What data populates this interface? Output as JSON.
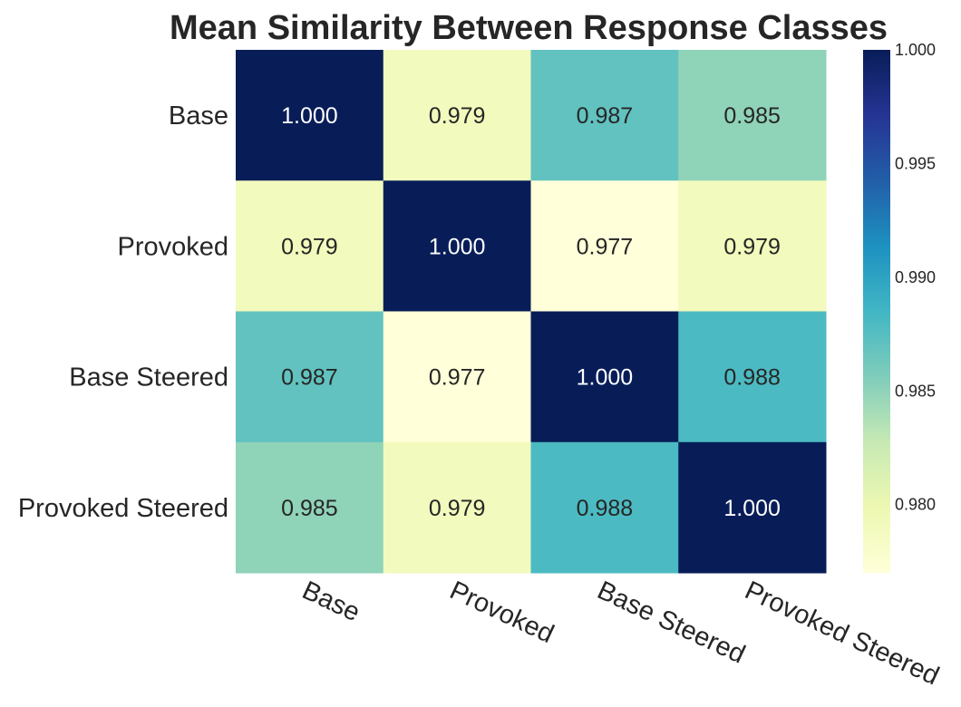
{
  "chart_data": {
    "type": "heatmap",
    "title": "Mean Similarity Between Response Classes",
    "rows": [
      "Base",
      "Provoked",
      "Base Steered",
      "Provoked Steered"
    ],
    "columns": [
      "Base",
      "Provoked",
      "Base Steered",
      "Provoked Steered"
    ],
    "values": [
      [
        1.0,
        0.979,
        0.987,
        0.985
      ],
      [
        0.979,
        1.0,
        0.977,
        0.979
      ],
      [
        0.987,
        0.977,
        1.0,
        0.988
      ],
      [
        0.985,
        0.979,
        0.988,
        1.0
      ]
    ],
    "cell_labels": [
      [
        "1.000",
        "0.979",
        "0.987",
        "0.985"
      ],
      [
        "0.979",
        "1.000",
        "0.977",
        "0.979"
      ],
      [
        "0.987",
        "0.977",
        "1.000",
        "0.988"
      ],
      [
        "0.985",
        "0.979",
        "0.988",
        "1.000"
      ]
    ],
    "colormap": "YlGnBu",
    "color_range": [
      0.977,
      1.0
    ],
    "colorbar": {
      "ticks": [
        0.98,
        0.985,
        0.99,
        0.995,
        1.0
      ],
      "tick_labels": [
        "0.980",
        "0.985",
        "0.990",
        "0.995",
        "1.000"
      ],
      "position": "right"
    },
    "colormap_stops": [
      "#ffffd9",
      "#edf8b1",
      "#c7e9b4",
      "#7fcdbb",
      "#41b6c4",
      "#1d91c0",
      "#225ea8",
      "#253494",
      "#081d58"
    ],
    "text_colors": {
      "dark": "#262626",
      "light": "#ffffff"
    }
  }
}
